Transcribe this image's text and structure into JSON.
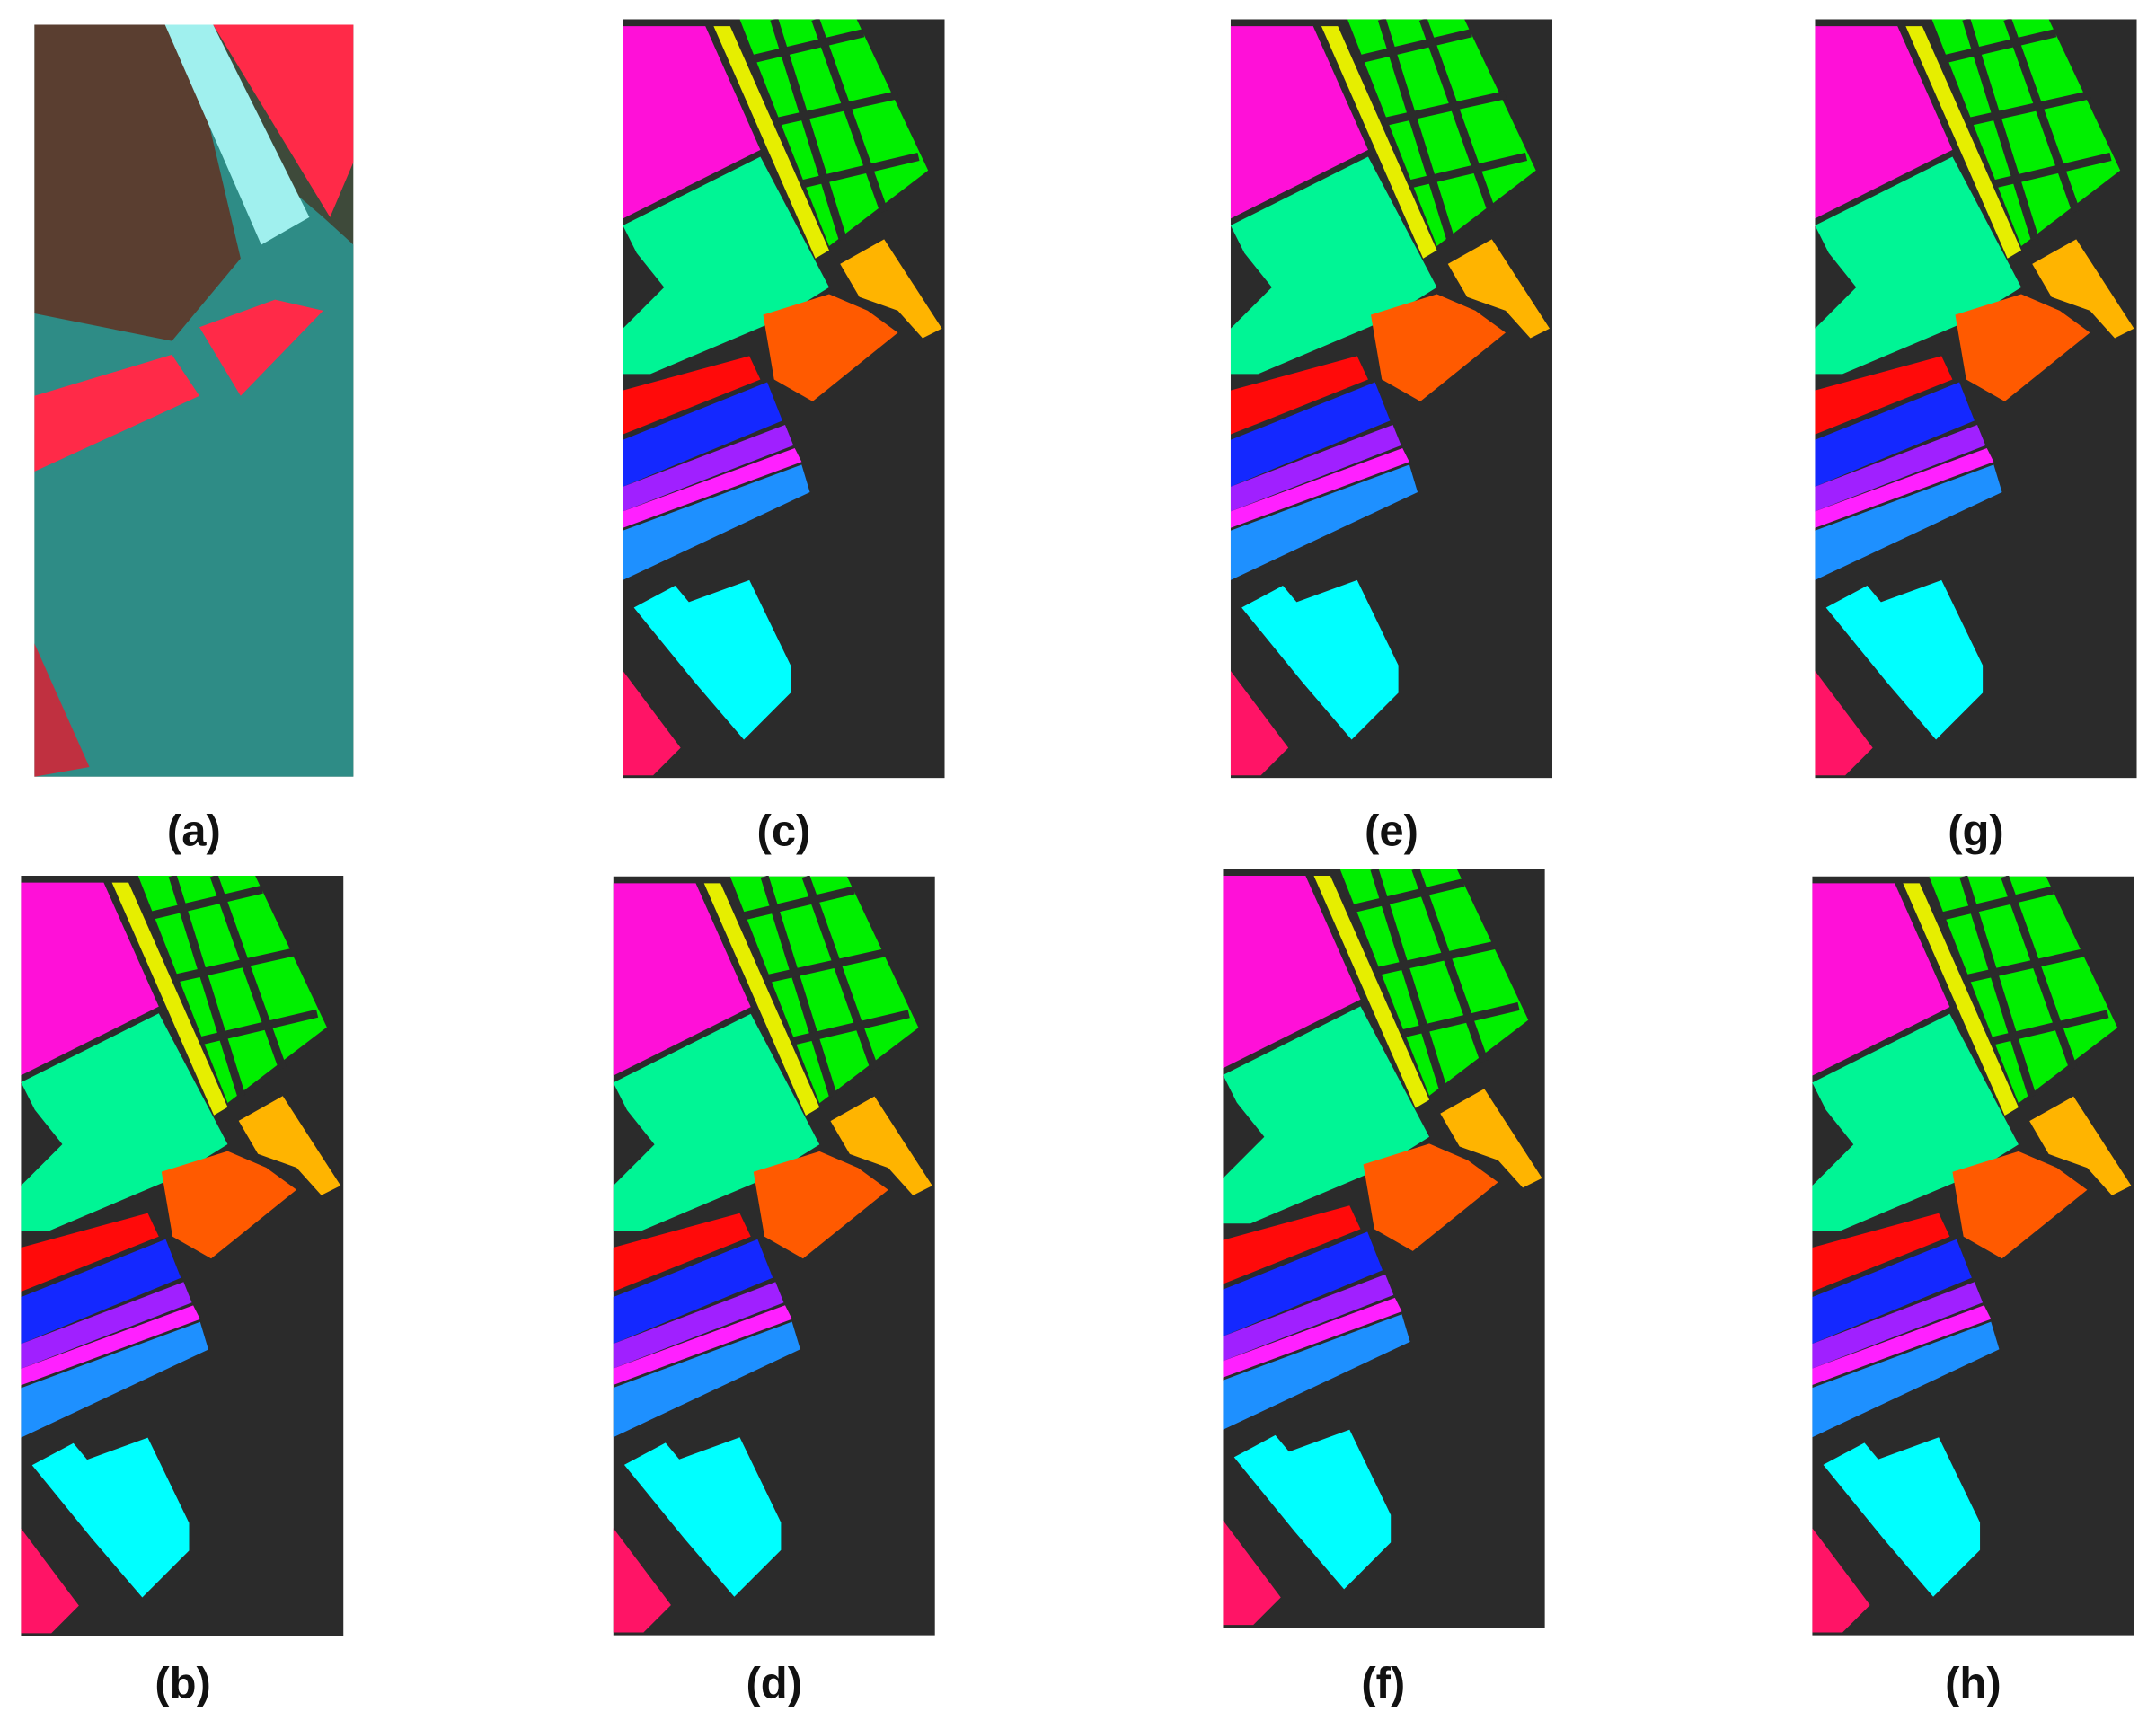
{
  "panels": [
    {
      "label": "(a)"
    },
    {
      "label": "(c)"
    },
    {
      "label": "(e)"
    },
    {
      "label": "(g)"
    },
    {
      "label": "(b)"
    },
    {
      "label": "(d)"
    },
    {
      "label": "(f)"
    },
    {
      "label": "(h)"
    }
  ]
}
